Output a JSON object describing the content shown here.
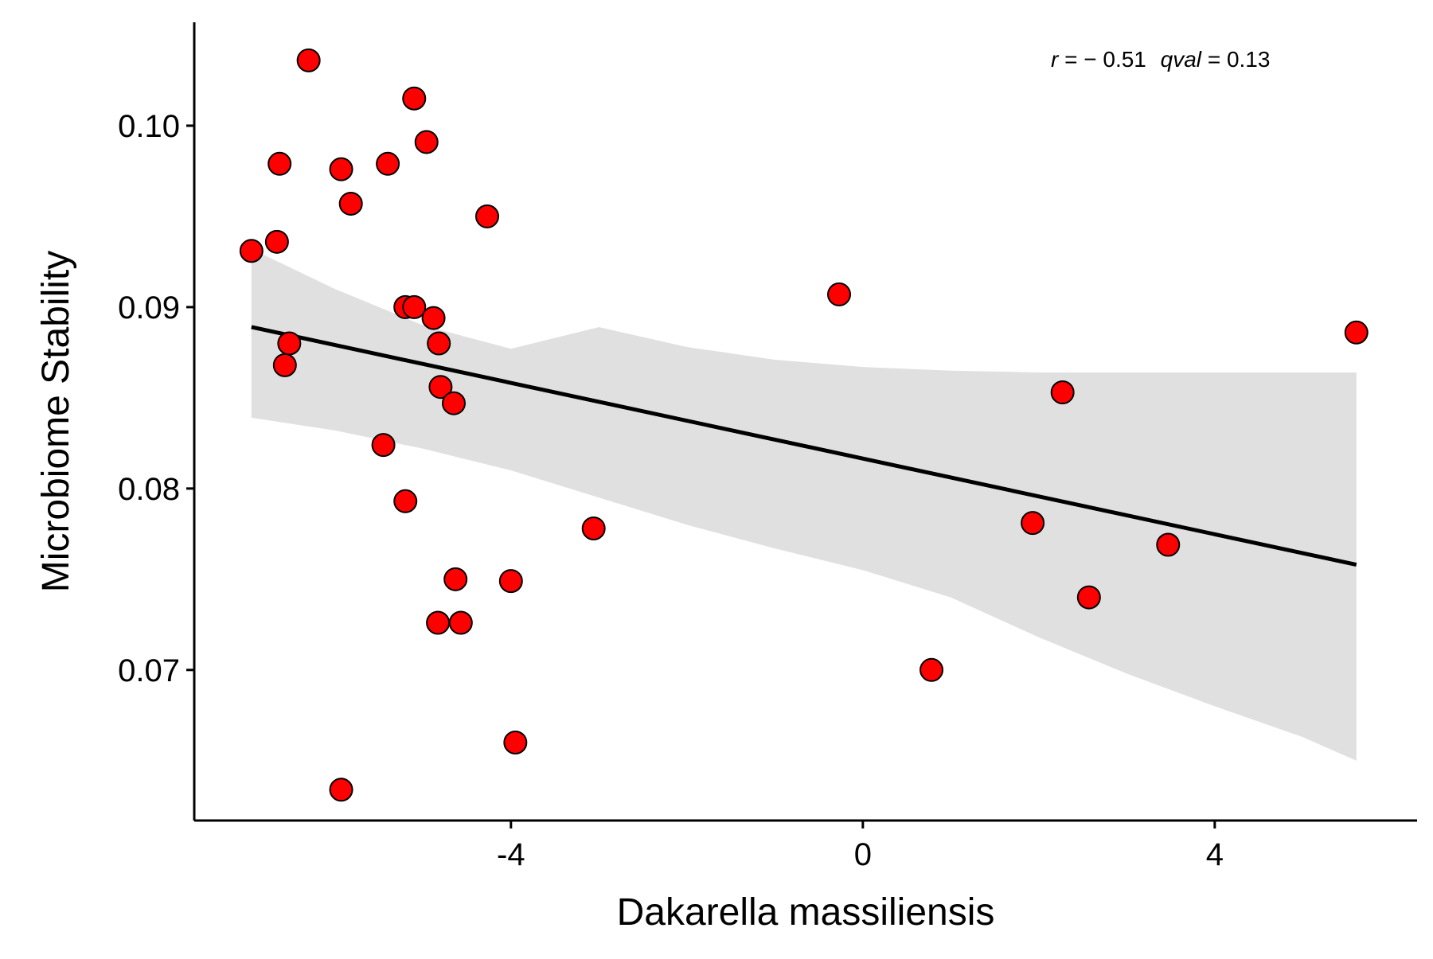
{
  "chart_data": {
    "type": "scatter",
    "title": "",
    "xlabel": "Dakarella massiliensis",
    "ylabel": "Microbiome Stability",
    "xlim": [
      -7.6,
      6.3
    ],
    "ylim": [
      0.0617,
      0.1057
    ],
    "x_ticks": [
      -4,
      0,
      4
    ],
    "x_tick_labels": [
      "-4",
      "0",
      "4"
    ],
    "y_ticks": [
      0.07,
      0.08,
      0.09,
      0.1
    ],
    "y_tick_labels": [
      "0.07",
      "0.08",
      "0.09",
      "0.10"
    ],
    "grid": false,
    "annotation": {
      "r_symbol": "r",
      "r_equals": " = −",
      "r_value": "0.51",
      "q_symbol": "qval",
      "q_equals": " = ",
      "q_value": "0.13"
    },
    "points": [
      {
        "x": -6.3,
        "y": 0.1036
      },
      {
        "x": -5.1,
        "y": 0.1015
      },
      {
        "x": -4.96,
        "y": 0.0991
      },
      {
        "x": -6.63,
        "y": 0.0979
      },
      {
        "x": -5.4,
        "y": 0.0979
      },
      {
        "x": -5.93,
        "y": 0.0976
      },
      {
        "x": -5.82,
        "y": 0.0957
      },
      {
        "x": -4.27,
        "y": 0.095
      },
      {
        "x": -6.66,
        "y": 0.0936
      },
      {
        "x": -6.95,
        "y": 0.0931
      },
      {
        "x": -5.2,
        "y": 0.09
      },
      {
        "x": -5.1,
        "y": 0.09
      },
      {
        "x": -4.88,
        "y": 0.0894
      },
      {
        "x": -4.82,
        "y": 0.088
      },
      {
        "x": -6.52,
        "y": 0.088
      },
      {
        "x": -6.57,
        "y": 0.0868
      },
      {
        "x": -4.8,
        "y": 0.0856
      },
      {
        "x": -4.65,
        "y": 0.0847
      },
      {
        "x": -5.45,
        "y": 0.0824
      },
      {
        "x": -5.2,
        "y": 0.0793
      },
      {
        "x": -3.06,
        "y": 0.0778
      },
      {
        "x": -4.63,
        "y": 0.075
      },
      {
        "x": -4.0,
        "y": 0.0749
      },
      {
        "x": -4.83,
        "y": 0.0726
      },
      {
        "x": -4.57,
        "y": 0.0726
      },
      {
        "x": -3.95,
        "y": 0.066
      },
      {
        "x": -5.93,
        "y": 0.0634
      },
      {
        "x": -0.27,
        "y": 0.0907
      },
      {
        "x": 0.78,
        "y": 0.07
      },
      {
        "x": 1.93,
        "y": 0.0781
      },
      {
        "x": 2.27,
        "y": 0.0853
      },
      {
        "x": 2.57,
        "y": 0.074
      },
      {
        "x": 3.47,
        "y": 0.0769
      },
      {
        "x": 5.61,
        "y": 0.0886
      }
    ],
    "fit_line": {
      "x": [
        -6.95,
        5.61
      ],
      "y": [
        0.0889,
        0.0758
      ]
    },
    "confidence_band": {
      "x": [
        -6.95,
        -6.0,
        -5.0,
        -4.0,
        -3.0,
        -2.0,
        -1.0,
        0.0,
        1.0,
        2.0,
        3.0,
        4.0,
        5.0,
        5.61
      ],
      "upper": [
        0.0932,
        0.091,
        0.089,
        0.0877,
        0.0889,
        0.0878,
        0.0871,
        0.0867,
        0.0865,
        0.0864,
        0.0864,
        0.0864,
        0.0864,
        0.0864
      ],
      "lower": [
        0.0839,
        0.0832,
        0.0822,
        0.081,
        0.0795,
        0.078,
        0.0767,
        0.0755,
        0.074,
        0.0718,
        0.0698,
        0.068,
        0.0663,
        0.065
      ]
    },
    "colors": {
      "point_fill": "#ff0000",
      "point_stroke": "#000000",
      "fit_line": "#000000",
      "band": "#e0e0e0",
      "axis": "#000000"
    }
  }
}
